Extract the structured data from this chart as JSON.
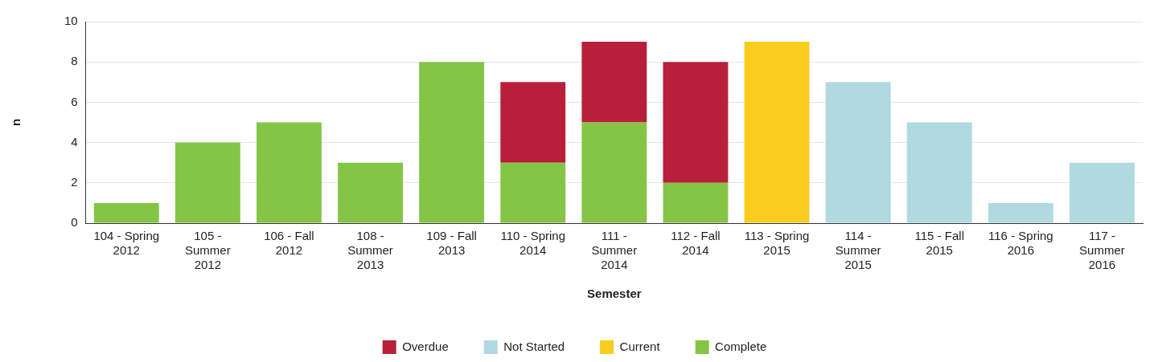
{
  "chart_data": {
    "type": "bar",
    "stacked": true,
    "xlabel": "Semester",
    "ylabel": "n",
    "categories": [
      "104 - Spring 2012",
      "105 - Summer 2012",
      "106 - Fall 2012",
      "108 - Summer 2013",
      "109 - Fall 2013",
      "110 - Spring 2014",
      "111 - Summer 2014",
      "112 - Fall 2014",
      "113 - Spring 2015",
      "114 - Summer 2015",
      "115 - Fall 2015",
      "116 - Spring 2016",
      "117 - Summer 2016"
    ],
    "series": [
      {
        "name": "Complete",
        "color": "#84c546",
        "values": [
          1,
          4,
          5,
          3,
          8,
          3,
          5,
          2,
          null,
          null,
          null,
          null,
          null
        ]
      },
      {
        "name": "Current",
        "color": "#f9cc1d",
        "values": [
          null,
          null,
          null,
          null,
          null,
          null,
          null,
          null,
          9,
          null,
          null,
          null,
          null
        ]
      },
      {
        "name": "Not Started",
        "color": "#b0d9e0",
        "values": [
          null,
          null,
          null,
          null,
          null,
          null,
          null,
          null,
          null,
          7,
          5,
          1,
          3
        ]
      },
      {
        "name": "Overdue",
        "color": "#b91f3a",
        "values": [
          null,
          null,
          null,
          null,
          null,
          4,
          4,
          6,
          null,
          null,
          null,
          null,
          null
        ]
      }
    ],
    "ylim": [
      0,
      10
    ],
    "yticks": [
      0,
      2,
      4,
      6,
      8,
      10
    ],
    "grid": "y",
    "legend": "bottom"
  }
}
